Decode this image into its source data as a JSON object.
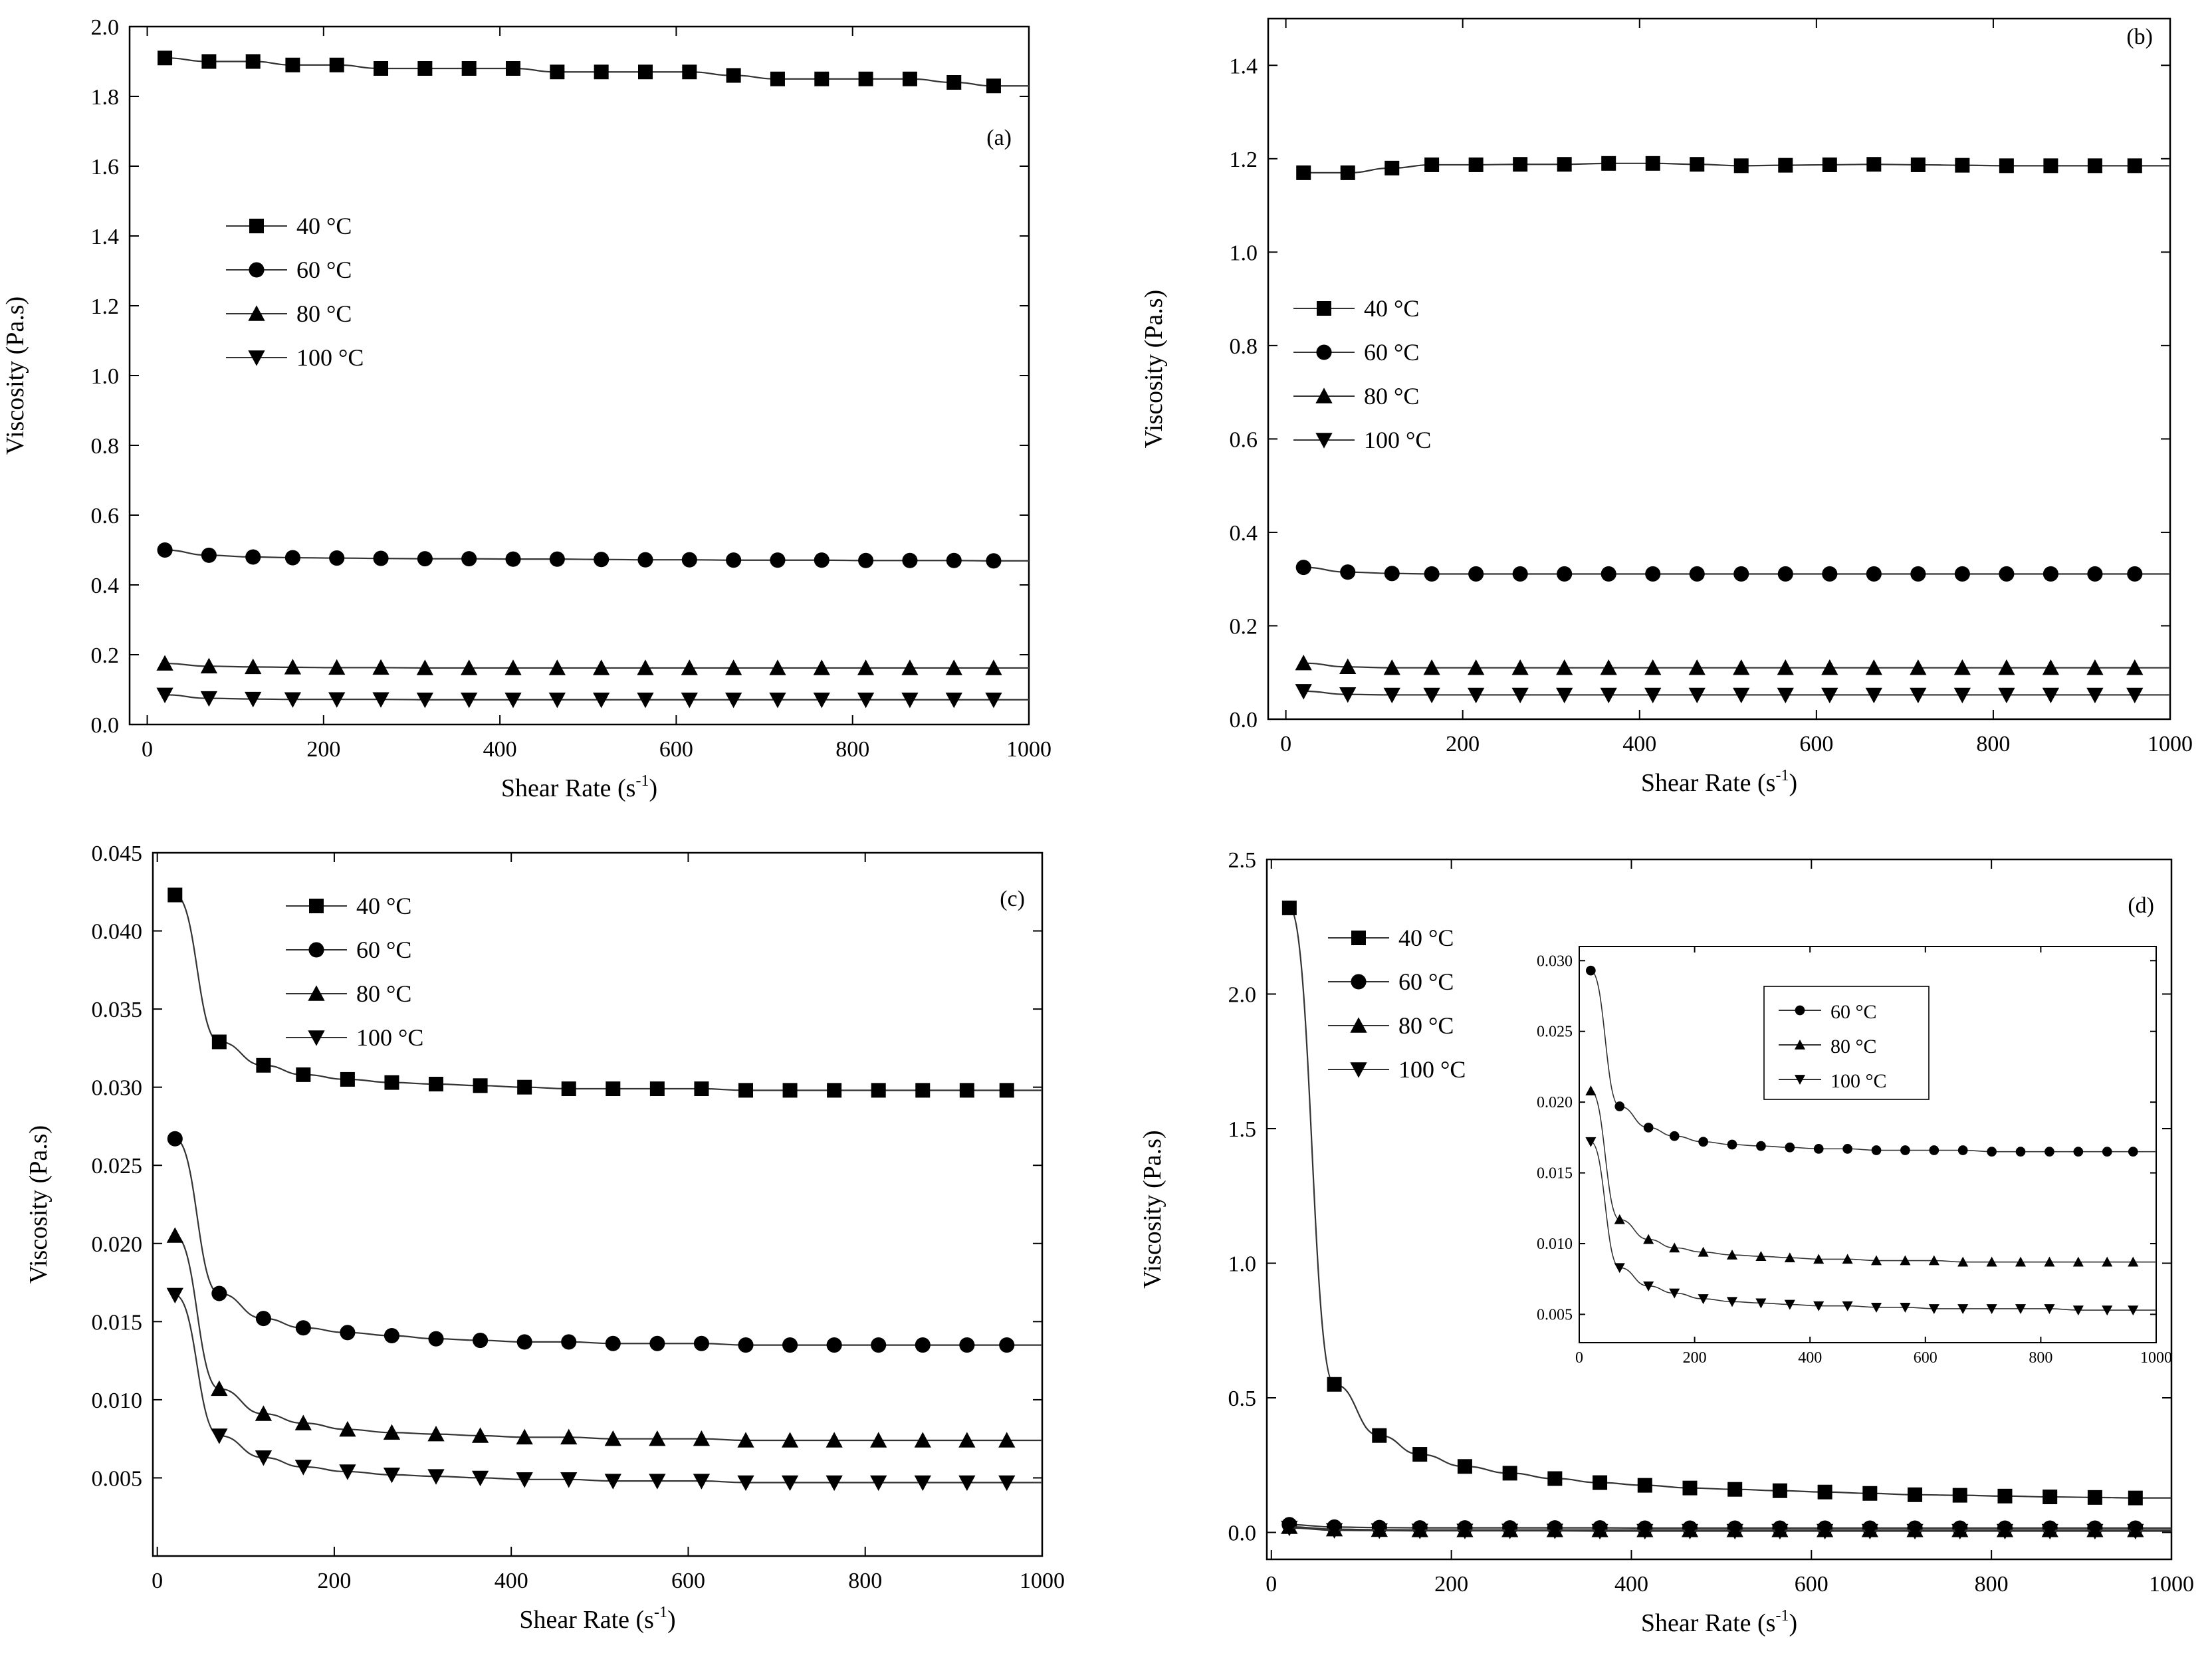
{
  "figure": {
    "label_order": [
      "a",
      "b",
      "c",
      "d"
    ]
  },
  "chart_data": [
    {
      "id": "a",
      "type": "line",
      "panel_label": "(a)",
      "title": "",
      "xlabel": "Shear Rate (s",
      "xlabel_sup": "-1",
      "xlabel_end": ")",
      "ylabel": "Viscosity (Pa.s)",
      "xlim": [
        -20,
        1000
      ],
      "ylim": [
        0,
        2.0
      ],
      "xticks": [
        "0",
        "200",
        "400",
        "600",
        "800",
        "1000"
      ],
      "xtick_values": [
        0,
        200,
        400,
        600,
        800,
        1000
      ],
      "yticks": [
        "0.0",
        "0.2",
        "0.4",
        "0.6",
        "0.8",
        "1.0",
        "1.2",
        "1.4",
        "1.6",
        "1.8",
        "2.0"
      ],
      "ytick_values": [
        0,
        0.2,
        0.4,
        0.6,
        0.8,
        1.0,
        1.2,
        1.4,
        1.6,
        1.8,
        2.0
      ],
      "legend": {
        "position": "upper-left"
      },
      "x": [
        20,
        70,
        120,
        165,
        215,
        265,
        315,
        365,
        415,
        465,
        515,
        565,
        615,
        665,
        715,
        765,
        815,
        865,
        915,
        960
      ],
      "series": [
        {
          "name": "40 °C",
          "marker": "square",
          "values": [
            1.91,
            1.9,
            1.9,
            1.89,
            1.89,
            1.88,
            1.88,
            1.88,
            1.88,
            1.87,
            1.87,
            1.87,
            1.87,
            1.86,
            1.85,
            1.85,
            1.85,
            1.85,
            1.84,
            1.83
          ]
        },
        {
          "name": "60 °C",
          "marker": "circle",
          "values": [
            0.5,
            0.485,
            0.48,
            0.478,
            0.477,
            0.476,
            0.475,
            0.475,
            0.474,
            0.474,
            0.473,
            0.472,
            0.472,
            0.471,
            0.471,
            0.471,
            0.47,
            0.47,
            0.47,
            0.469
          ]
        },
        {
          "name": "80 °C",
          "marker": "triangle-up",
          "values": [
            0.175,
            0.167,
            0.165,
            0.164,
            0.163,
            0.163,
            0.162,
            0.162,
            0.162,
            0.162,
            0.162,
            0.162,
            0.162,
            0.162,
            0.162,
            0.162,
            0.162,
            0.162,
            0.162,
            0.162
          ]
        },
        {
          "name": "100 °C",
          "marker": "triangle-down",
          "values": [
            0.085,
            0.075,
            0.073,
            0.072,
            0.072,
            0.072,
            0.071,
            0.071,
            0.071,
            0.071,
            0.071,
            0.071,
            0.071,
            0.071,
            0.071,
            0.071,
            0.071,
            0.071,
            0.071,
            0.071
          ]
        }
      ]
    },
    {
      "id": "b",
      "type": "line",
      "panel_label": "(b)",
      "title": "",
      "xlabel": "Shear Rate (s",
      "xlabel_sup": "-1",
      "xlabel_end": ")",
      "ylabel": "Viscosity (Pa.s)",
      "xlim": [
        -20,
        1000
      ],
      "ylim": [
        0,
        1.5
      ],
      "xticks": [
        "0",
        "200",
        "400",
        "600",
        "800",
        "1000"
      ],
      "xtick_values": [
        0,
        200,
        400,
        600,
        800,
        1000
      ],
      "yticks": [
        "0.0",
        "0.2",
        "0.4",
        "0.6",
        "0.8",
        "1.0",
        "1.2",
        "1.4"
      ],
      "ytick_values": [
        0,
        0.2,
        0.4,
        0.6,
        0.8,
        1.0,
        1.2,
        1.4
      ],
      "legend": {
        "position": "middle-left"
      },
      "x": [
        20,
        70,
        120,
        165,
        215,
        265,
        315,
        365,
        415,
        465,
        515,
        565,
        615,
        665,
        715,
        765,
        815,
        865,
        915,
        960
      ],
      "series": [
        {
          "name": "40 °C",
          "marker": "square",
          "values": [
            1.17,
            1.17,
            1.18,
            1.187,
            1.187,
            1.188,
            1.188,
            1.19,
            1.19,
            1.188,
            1.185,
            1.186,
            1.187,
            1.188,
            1.187,
            1.186,
            1.185,
            1.185,
            1.185,
            1.185
          ]
        },
        {
          "name": "60 °C",
          "marker": "circle",
          "values": [
            0.325,
            0.315,
            0.312,
            0.311,
            0.311,
            0.311,
            0.311,
            0.311,
            0.311,
            0.311,
            0.311,
            0.311,
            0.311,
            0.311,
            0.311,
            0.311,
            0.311,
            0.311,
            0.311,
            0.311
          ]
        },
        {
          "name": "80 °C",
          "marker": "triangle-up",
          "values": [
            0.12,
            0.112,
            0.11,
            0.11,
            0.11,
            0.11,
            0.11,
            0.11,
            0.11,
            0.11,
            0.11,
            0.11,
            0.11,
            0.11,
            0.11,
            0.11,
            0.11,
            0.11,
            0.11,
            0.11
          ]
        },
        {
          "name": "100 °C",
          "marker": "triangle-down",
          "values": [
            0.06,
            0.053,
            0.052,
            0.052,
            0.052,
            0.052,
            0.052,
            0.052,
            0.052,
            0.052,
            0.052,
            0.052,
            0.052,
            0.052,
            0.052,
            0.052,
            0.052,
            0.052,
            0.052,
            0.052
          ]
        }
      ]
    },
    {
      "id": "c",
      "type": "line",
      "panel_label": "(c)",
      "title": "",
      "xlabel": "Shear Rate (s",
      "xlabel_sup": "-1",
      "xlabel_end": ")",
      "ylabel": "Viscosity (Pa.s)",
      "xlim": [
        -5,
        1000
      ],
      "ylim": [
        0,
        0.045
      ],
      "xticks": [
        "0",
        "200",
        "400",
        "600",
        "800",
        "1000"
      ],
      "xtick_values": [
        0,
        200,
        400,
        600,
        800,
        1000
      ],
      "yticks": [
        "0.005",
        "0.010",
        "0.015",
        "0.020",
        "0.025",
        "0.030",
        "0.035",
        "0.040",
        "0.045"
      ],
      "ytick_values": [
        0.005,
        0.01,
        0.015,
        0.02,
        0.025,
        0.03,
        0.035,
        0.04,
        0.045
      ],
      "legend": {
        "position": "top-left"
      },
      "x": [
        20,
        70,
        120,
        165,
        215,
        265,
        315,
        365,
        415,
        465,
        515,
        565,
        615,
        665,
        715,
        765,
        815,
        865,
        915,
        960
      ],
      "series": [
        {
          "name": "40 °C",
          "marker": "square",
          "values": [
            0.0423,
            0.0329,
            0.0314,
            0.0308,
            0.0305,
            0.0303,
            0.0302,
            0.0301,
            0.03,
            0.0299,
            0.0299,
            0.0299,
            0.0299,
            0.0298,
            0.0298,
            0.0298,
            0.0298,
            0.0298,
            0.0298,
            0.0298
          ]
        },
        {
          "name": "60 °C",
          "marker": "circle",
          "values": [
            0.0267,
            0.0168,
            0.0152,
            0.0146,
            0.0143,
            0.0141,
            0.0139,
            0.0138,
            0.0137,
            0.0137,
            0.0136,
            0.0136,
            0.0136,
            0.0135,
            0.0135,
            0.0135,
            0.0135,
            0.0135,
            0.0135,
            0.0135
          ]
        },
        {
          "name": "80 °C",
          "marker": "triangle-up",
          "values": [
            0.0205,
            0.0107,
            0.0091,
            0.0085,
            0.0081,
            0.0079,
            0.0078,
            0.0077,
            0.0076,
            0.0076,
            0.0075,
            0.0075,
            0.0075,
            0.0074,
            0.0074,
            0.0074,
            0.0074,
            0.0074,
            0.0074,
            0.0074
          ]
        },
        {
          "name": "100 °C",
          "marker": "triangle-down",
          "values": [
            0.0167,
            0.0077,
            0.0063,
            0.0057,
            0.0054,
            0.0052,
            0.0051,
            0.005,
            0.0049,
            0.0049,
            0.0048,
            0.0048,
            0.0048,
            0.0047,
            0.0047,
            0.0047,
            0.0047,
            0.0047,
            0.0047,
            0.0047
          ]
        }
      ]
    },
    {
      "id": "d",
      "type": "line",
      "panel_label": "(d)",
      "title": "",
      "xlabel": "Shear Rate (s",
      "xlabel_sup": "-1",
      "xlabel_end": ")",
      "ylabel": "Viscosity (Pa.s)",
      "xlim": [
        -5,
        1000
      ],
      "ylim": [
        -0.1,
        2.5
      ],
      "xticks": [
        "0",
        "200",
        "400",
        "600",
        "800",
        "1000"
      ],
      "xtick_values": [
        0,
        200,
        400,
        600,
        800,
        1000
      ],
      "yticks": [
        "0.0",
        "0.5",
        "1.0",
        "1.5",
        "2.0",
        "2.5"
      ],
      "ytick_values": [
        0,
        0.5,
        1.0,
        1.5,
        2.0,
        2.5
      ],
      "legend": {
        "position": "top-left"
      },
      "x": [
        20,
        70,
        120,
        165,
        215,
        265,
        315,
        365,
        415,
        465,
        515,
        565,
        615,
        665,
        715,
        765,
        815,
        865,
        915,
        960
      ],
      "series": [
        {
          "name": "40 °C",
          "marker": "square",
          "values": [
            2.32,
            0.55,
            0.36,
            0.29,
            0.245,
            0.22,
            0.2,
            0.185,
            0.175,
            0.165,
            0.16,
            0.155,
            0.15,
            0.145,
            0.14,
            0.138,
            0.135,
            0.132,
            0.13,
            0.128
          ]
        },
        {
          "name": "60 °C",
          "marker": "circle",
          "values": [
            0.029,
            0.02,
            0.018,
            0.017,
            0.017,
            0.017,
            0.017,
            0.017,
            0.016,
            0.016,
            0.016,
            0.016,
            0.016,
            0.016,
            0.016,
            0.016,
            0.016,
            0.016,
            0.016,
            0.016
          ]
        },
        {
          "name": "80 °C",
          "marker": "triangle-up",
          "values": [
            0.021,
            0.012,
            0.01,
            0.009,
            0.009,
            0.009,
            0.009,
            0.009,
            0.009,
            0.009,
            0.009,
            0.009,
            0.009,
            0.009,
            0.009,
            0.009,
            0.009,
            0.009,
            0.009,
            0.009
          ]
        },
        {
          "name": "100 °C",
          "marker": "triangle-down",
          "values": [
            0.017,
            0.008,
            0.007,
            0.006,
            0.006,
            0.006,
            0.006,
            0.005,
            0.005,
            0.005,
            0.005,
            0.005,
            0.005,
            0.005,
            0.005,
            0.005,
            0.005,
            0.005,
            0.005,
            0.005
          ]
        }
      ],
      "inset": {
        "type": "line",
        "xlabel": "",
        "ylabel": "",
        "xlim": [
          0,
          1000
        ],
        "ylim": [
          0.003,
          0.031
        ],
        "xticks": [
          "0",
          "200",
          "400",
          "600",
          "800",
          "1000"
        ],
        "xtick_values": [
          0,
          200,
          400,
          600,
          800,
          1000
        ],
        "yticks": [
          "0.005",
          "0.010",
          "0.015",
          "0.020",
          "0.025",
          "0.030"
        ],
        "ytick_values": [
          0.005,
          0.01,
          0.015,
          0.02,
          0.025,
          0.03
        ],
        "legend": {
          "position": "top-center"
        },
        "x": [
          20,
          70,
          120,
          165,
          215,
          265,
          315,
          365,
          415,
          465,
          515,
          565,
          615,
          665,
          715,
          765,
          815,
          865,
          915,
          960
        ],
        "series": [
          {
            "name": "60 °C",
            "marker": "circle",
            "values": [
              0.0293,
              0.0197,
              0.0182,
              0.0176,
              0.0172,
              0.017,
              0.0169,
              0.0168,
              0.0167,
              0.0167,
              0.0166,
              0.0166,
              0.0166,
              0.0166,
              0.0165,
              0.0165,
              0.0165,
              0.0165,
              0.0165,
              0.0165
            ]
          },
          {
            "name": "80 °C",
            "marker": "triangle-up",
            "values": [
              0.0208,
              0.0117,
              0.0103,
              0.0097,
              0.0094,
              0.0092,
              0.0091,
              0.009,
              0.0089,
              0.0089,
              0.0088,
              0.0088,
              0.0088,
              0.0087,
              0.0087,
              0.0087,
              0.0087,
              0.0087,
              0.0087,
              0.0087
            ]
          },
          {
            "name": "100 °C",
            "marker": "triangle-down",
            "values": [
              0.0172,
              0.0083,
              0.007,
              0.0065,
              0.0061,
              0.0059,
              0.0058,
              0.0057,
              0.0056,
              0.0056,
              0.0055,
              0.0055,
              0.0054,
              0.0054,
              0.0054,
              0.0054,
              0.0054,
              0.0053,
              0.0053,
              0.0053
            ]
          }
        ]
      }
    }
  ]
}
